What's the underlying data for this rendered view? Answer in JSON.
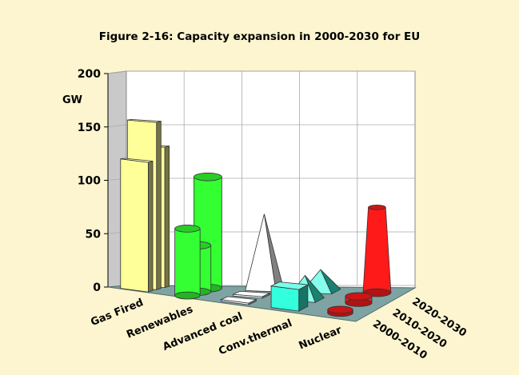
{
  "chart_data": {
    "type": "bar",
    "title": "Figure 2-16: Capacity expansion in 2000-2030 for EU",
    "ylabel": "GW",
    "ylim": [
      0,
      200
    ],
    "yticks": [
      0,
      50,
      100,
      150,
      200
    ],
    "categories": [
      "Gas Fired",
      "Renewables",
      "Advanced coal",
      "Conv.thermal",
      "Nuclear"
    ],
    "depth_series": [
      "2000-2010",
      "2010-2020",
      "2020-2030"
    ],
    "colors": {
      "Gas Fired": "#ffff99",
      "Renewables": "#33ff33",
      "Advanced coal": "#ffffff",
      "Conv.thermal": "#33ffdd",
      "Nuclear": "#ff1a1a"
    },
    "grid": true,
    "series": [
      {
        "name": "2000-2010",
        "shape": "box",
        "values": [
          120,
          62,
          0,
          20,
          0
        ]
      },
      {
        "name": "2010-2020",
        "shape": "mixed",
        "values": [
          155,
          43,
          0,
          22,
          6
        ]
      },
      {
        "name": "2020-2030",
        "shape": "mixed",
        "values": [
          130,
          103,
          70,
          20,
          79
        ]
      }
    ]
  }
}
